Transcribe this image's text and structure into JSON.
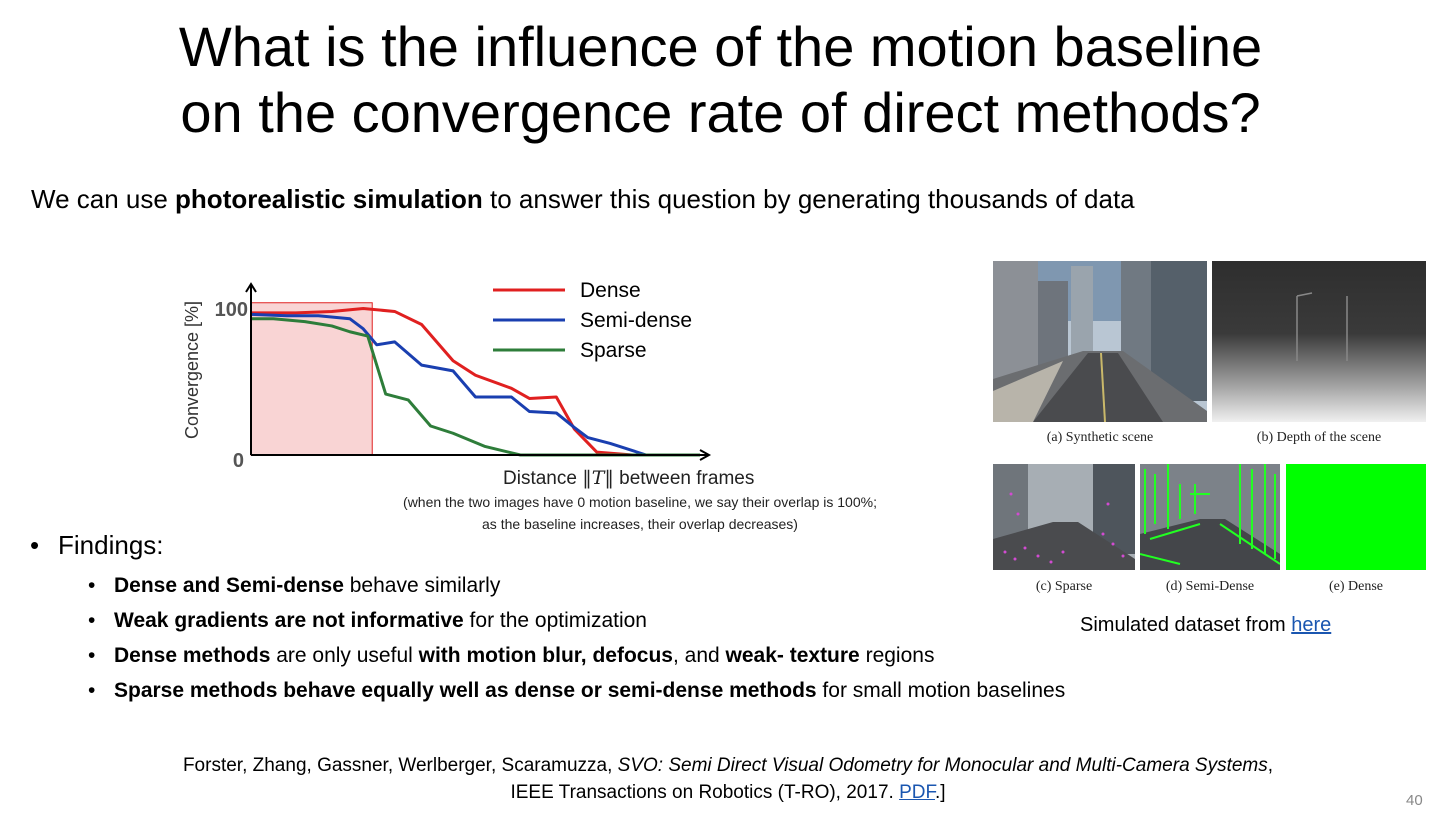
{
  "slide": {
    "title_line1": "What is the influence of the motion baseline",
    "title_line2": "on the convergence rate of direct methods?",
    "intro_pre": "We can use ",
    "intro_bold": "photorealistic simulation",
    "intro_post": " to answer this question by generating thousands of data",
    "caption_distance_pre": "Distance ",
    "caption_distance_symbol": "‖T‖",
    "caption_distance_post": " between frames",
    "caption_note1": "(when the two images have 0 motion baseline, we say their overlap is 100%;",
    "caption_note2": "as the baseline increases, their overlap decreases)",
    "findings_label": "Findings:",
    "findings": [
      {
        "bold": "Dense and Semi-dense",
        "rest": " behave similarly"
      },
      {
        "bold": "Weak gradients are not informative",
        "rest": " for the optimization"
      },
      {
        "bold": "Dense methods",
        "rest": " are only useful ",
        "bold2": "with motion blur, defocus",
        "rest2": ", and ",
        "bold3": "weak- texture",
        "rest3": " regions"
      },
      {
        "bold": "Sparse methods behave equally well as dense or semi-dense methods",
        "rest": " for small motion baselines"
      }
    ],
    "reference_pre": "Forster, Zhang, Gassner, Werlberger, Scaramuzza, ",
    "reference_title": "SVO: Semi Direct Visual Odometry for Monocular and Multi-Camera Systems",
    "reference_post": ",",
    "reference_line2": "IEEE Transactions on Robotics (T-RO), 2017. ",
    "reference_link": "PDF",
    "reference_end": ".]",
    "page_number": "40",
    "dataset_caption_pre": "Simulated dataset from ",
    "dataset_caption_link": "here",
    "image_captions": {
      "a": "(a) Synthetic scene",
      "b": "(b) Depth of the scene",
      "c": "(c) Sparse",
      "d": "(d) Semi-Dense",
      "e": "(e) Dense"
    },
    "colors": {
      "dense": "#e02020",
      "semi_dense": "#1a3fb0",
      "sparse": "#2e7d3a",
      "highlight": "#f9d4d4",
      "link": "#1a56b0"
    }
  },
  "chart_data": {
    "type": "line",
    "ylabel": "Convergence [%]",
    "y_ticks": [
      "100",
      "0"
    ],
    "ylim": [
      0,
      105
    ],
    "xlim": [
      0,
      100
    ],
    "legend_position": "top-right",
    "highlight_range": [
      0,
      27
    ],
    "series": [
      {
        "name": "Dense",
        "color": "#e02020",
        "x": [
          0,
          10,
          18,
          25,
          32,
          38,
          45,
          50,
          58,
          62,
          68,
          72,
          77,
          85,
          100
        ],
        "y": [
          98,
          98,
          99,
          101,
          99,
          90,
          65,
          55,
          46,
          39,
          40,
          18,
          2,
          0,
          0
        ]
      },
      {
        "name": "Semi-dense",
        "color": "#1a3fb0",
        "x": [
          0,
          8,
          15,
          22,
          25,
          28,
          32,
          38,
          45,
          50,
          58,
          62,
          68,
          72,
          75,
          80,
          88,
          100
        ],
        "y": [
          97,
          96,
          96,
          94,
          87,
          76,
          78,
          62,
          58,
          40,
          40,
          30,
          29,
          19,
          12,
          8,
          0,
          0
        ]
      },
      {
        "name": "Sparse",
        "color": "#2e7d3a",
        "x": [
          0,
          5,
          12,
          18,
          22,
          26,
          30,
          35,
          40,
          45,
          52,
          60,
          70,
          100
        ],
        "y": [
          94,
          94,
          92,
          89,
          85,
          82,
          42,
          38,
          20,
          15,
          6,
          0,
          0,
          0
        ]
      }
    ]
  }
}
